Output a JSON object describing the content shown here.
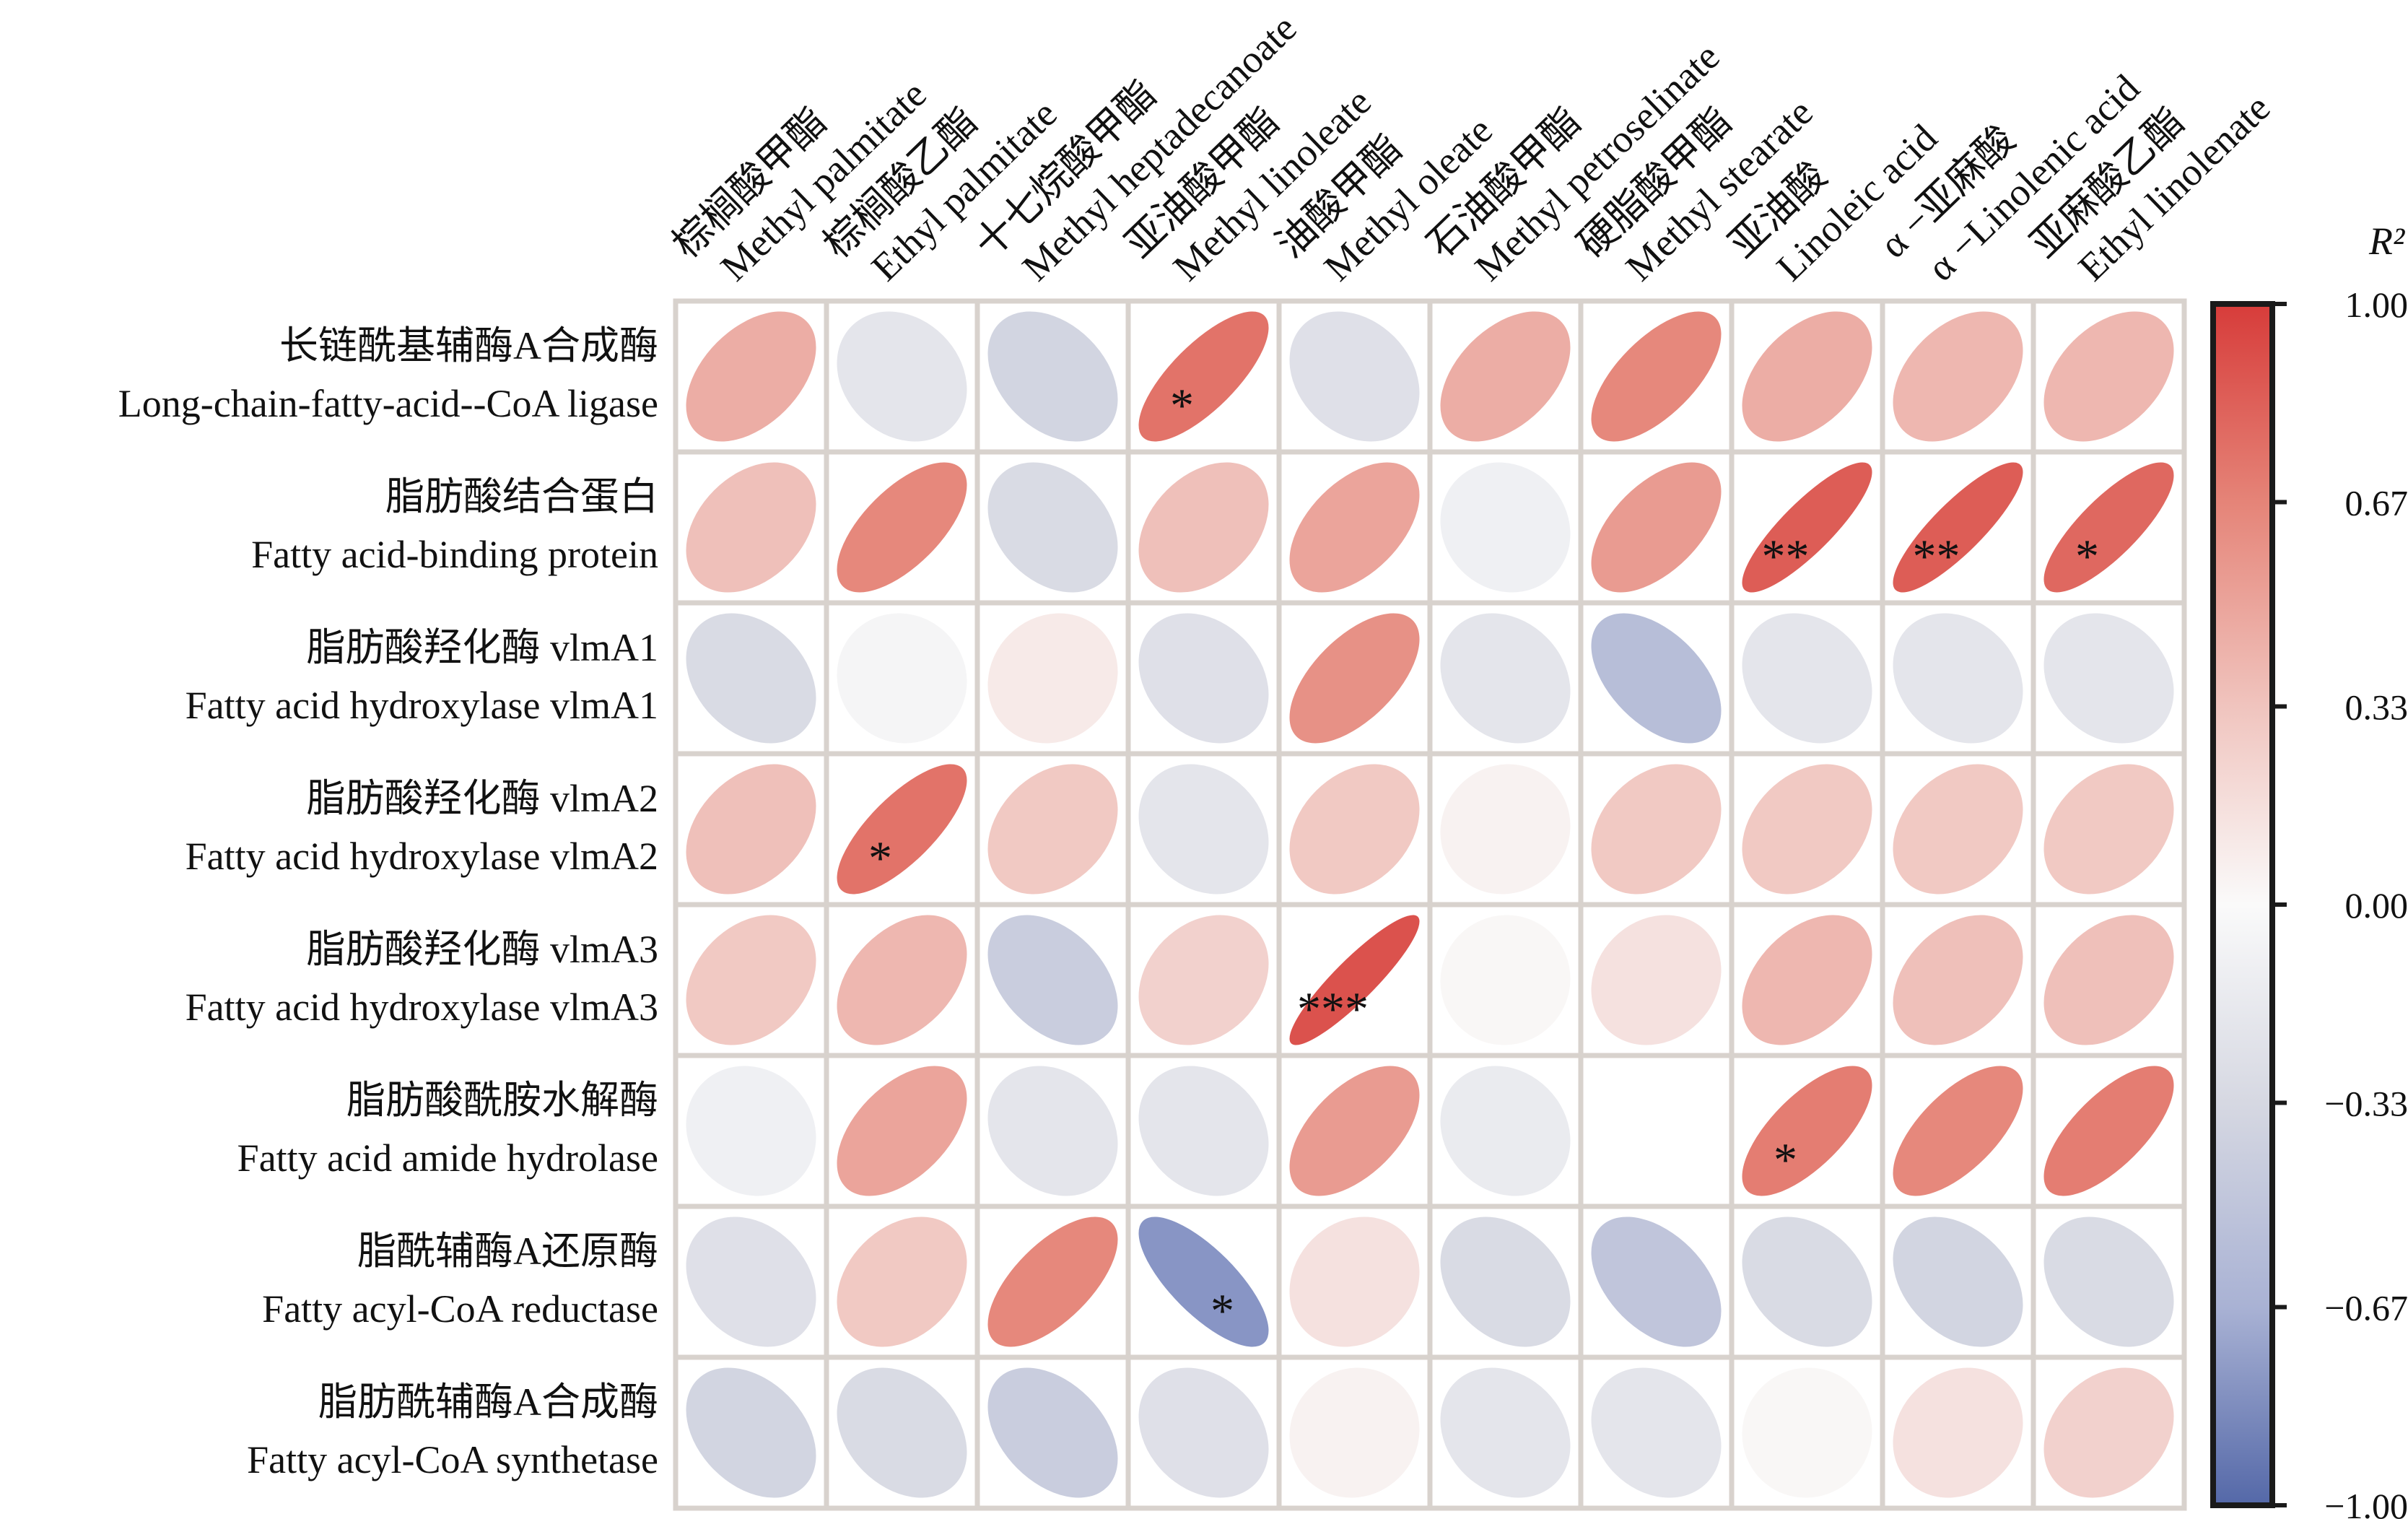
{
  "chart_data": {
    "type": "heatmap",
    "style": "corrplot-ellipse",
    "colorbar": {
      "label": "R²",
      "range": [
        -1,
        1
      ],
      "ticks": [
        "1.00",
        "0.67",
        "0.33",
        "0.00",
        "−0.33",
        "−0.67",
        "−1.00"
      ],
      "tick_values": [
        1,
        0.67,
        0.33,
        0,
        -0.33,
        -0.67,
        -1
      ],
      "colors": {
        "negative": "#5468a8",
        "zero": "#fafafa",
        "positive": "#d73c3a"
      }
    },
    "columns": [
      {
        "zh": "棕榈酸甲酯",
        "en": "Methyl palmitate"
      },
      {
        "zh": "棕榈酸乙酯",
        "en": "Ethyl palmitate"
      },
      {
        "zh": "十七烷酸甲酯",
        "en": "Methyl heptadecanoate"
      },
      {
        "zh": "亚油酸甲酯",
        "en": "Methyl linoleate"
      },
      {
        "zh": "油酸甲酯",
        "en": "Methyl oleate"
      },
      {
        "zh": "石油酸甲酯",
        "en": "Methyl petroselinate"
      },
      {
        "zh": "硬脂酸甲酯",
        "en": "Methyl stearate"
      },
      {
        "zh": "亚油酸",
        "en": "Linoleic acid"
      },
      {
        "zh": "α −亚麻酸",
        "en": "α −Linolenic acid"
      },
      {
        "zh": "亚麻酸乙酯",
        "en": "Ethyl linolenate"
      }
    ],
    "rows": [
      {
        "zh": "长链酰基辅酶A合成酶",
        "en": "Long-chain-fatty-acid--CoA ligase"
      },
      {
        "zh": "脂肪酸结合蛋白",
        "en": "Fatty acid-binding protein"
      },
      {
        "zh": "脂肪酸羟化酶 vlmA1",
        "en": "Fatty acid hydroxylase vlmA1"
      },
      {
        "zh": "脂肪酸羟化酶 vlmA2",
        "en": "Fatty acid hydroxylase vlmA2"
      },
      {
        "zh": "脂肪酸羟化酶 vlmA3",
        "en": "Fatty acid hydroxylase vlmA3"
      },
      {
        "zh": "脂肪酸酰胺水解酶",
        "en": "Fatty acid amide hydrolase"
      },
      {
        "zh": "脂酰辅酶A还原酶",
        "en": "Fatty acyl-CoA reductase"
      },
      {
        "zh": "脂肪酰辅酶A合成酶",
        "en": "Fatty acyl-CoA synthetase"
      }
    ],
    "values": [
      [
        0.45,
        -0.2,
        -0.35,
        0.75,
        -0.25,
        0.45,
        0.65,
        0.45,
        0.4,
        0.4
      ],
      [
        0.35,
        0.65,
        -0.3,
        0.35,
        0.5,
        -0.1,
        0.55,
        0.85,
        0.85,
        0.8
      ],
      [
        -0.3,
        -0.05,
        0.1,
        -0.25,
        0.6,
        -0.2,
        -0.5,
        -0.2,
        -0.2,
        -0.2
      ],
      [
        0.35,
        0.75,
        0.3,
        -0.2,
        0.3,
        0.05,
        0.3,
        0.3,
        0.3,
        0.3
      ],
      [
        0.3,
        0.4,
        -0.4,
        0.25,
        0.9,
        0.02,
        0.15,
        0.4,
        0.35,
        0.35
      ],
      [
        -0.1,
        0.5,
        -0.2,
        -0.2,
        0.55,
        -0.15,
        0.0,
        0.7,
        0.65,
        0.7
      ],
      [
        -0.25,
        0.3,
        0.65,
        -0.75,
        0.15,
        -0.3,
        -0.45,
        -0.3,
        -0.35,
        -0.3
      ],
      [
        -0.35,
        -0.3,
        -0.4,
        -0.25,
        0.05,
        -0.2,
        -0.2,
        0.02,
        0.15,
        0.25
      ]
    ],
    "significance": [
      [
        "",
        "",
        "",
        "*",
        "",
        "",
        "",
        "",
        "",
        ""
      ],
      [
        "",
        "",
        "",
        "",
        "",
        "",
        "",
        "**",
        "**",
        "*"
      ],
      [
        "",
        "",
        "",
        "",
        "",
        "",
        "",
        "",
        "",
        ""
      ],
      [
        "",
        "*",
        "",
        "",
        "",
        "",
        "",
        "",
        "",
        ""
      ],
      [
        "",
        "",
        "",
        "",
        "***",
        "",
        "",
        "",
        "",
        ""
      ],
      [
        "",
        "",
        "",
        "",
        "",
        "",
        "",
        "*",
        "",
        ""
      ],
      [
        "",
        "",
        "",
        "*",
        "",
        "",
        "",
        "",
        "",
        ""
      ],
      [
        "",
        "",
        "",
        "",
        "",
        "",
        "",
        "",
        "",
        ""
      ]
    ],
    "empty_cells": [
      [
        5,
        6
      ]
    ],
    "grid": true
  }
}
